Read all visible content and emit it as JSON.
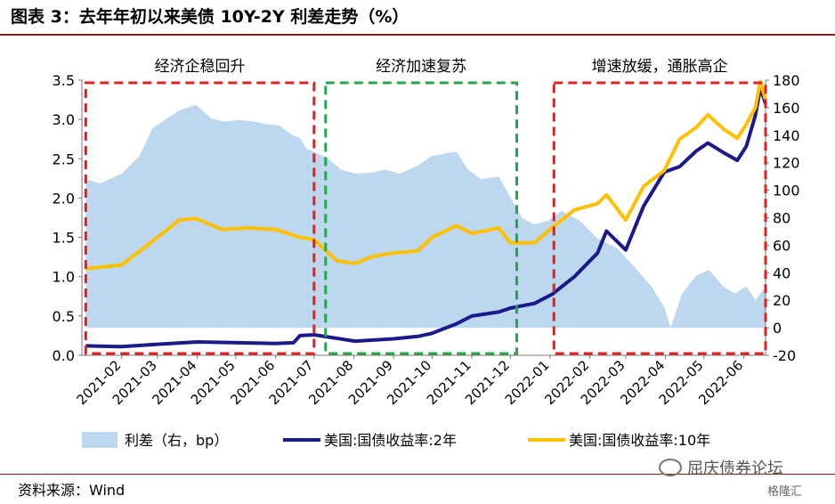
{
  "title": "图表 3：去年年初以来美债 10Y-2Y 利差走势（%）",
  "source": "资料来源：Wind",
  "watermark": "屈庆债券论坛",
  "watermark_brand": "格隆汇",
  "colors": {
    "spread_fill": "#bdd7ee",
    "y2": "#1a1a8a",
    "y10": "#ffc000",
    "box_red": "#e02020",
    "box_green": "#21a84a",
    "title_rule": "#8a1e1e"
  },
  "chart_data": {
    "type": "line",
    "x_tick_labels": [
      "2021-02",
      "2021-03",
      "2021-04",
      "2021-05",
      "2021-06",
      "2021-07",
      "2021-08",
      "2021-09",
      "2021-10",
      "2021-11",
      "2021-12",
      "2022-01",
      "2022-02",
      "2022-03",
      "2022-04",
      "2022-05",
      "2022-06"
    ],
    "x_range": [
      "2021-01-01",
      "2022-06-18"
    ],
    "y_left": {
      "ylim": [
        0,
        3.5
      ],
      "ticks": [
        "0.0",
        "0.5",
        "1.0",
        "1.5",
        "2.0",
        "2.5",
        "3.0",
        "3.5"
      ]
    },
    "y_right": {
      "ylim": [
        -20,
        180
      ],
      "ticks": [
        "-20",
        "0",
        "20",
        "40",
        "60",
        "80",
        "100",
        "120",
        "140",
        "160",
        "180"
      ]
    },
    "annotations": [
      "经济企稳回升",
      "经济加速复苏",
      "增速放缓，通胀高企"
    ],
    "periods": [
      {
        "label": "经济企稳回升",
        "start": "2021-01-04",
        "end": "2021-07-01",
        "color": "red"
      },
      {
        "label": "经济加速复苏",
        "start": "2021-07-10",
        "end": "2021-12-06",
        "color": "green"
      },
      {
        "label": "增速放缓，通胀高企",
        "start": "2022-01-04",
        "end": "2022-06-18",
        "color": "red"
      }
    ],
    "legend": [
      "利差（右，bp）",
      "美国:国债收益率:2年",
      "美国:国债收益率:10年"
    ],
    "series": [
      {
        "name": "利差（右，bp）",
        "axis": "right",
        "kind": "area",
        "points": [
          [
            "2021-01-04",
            108
          ],
          [
            "2021-01-15",
            105
          ],
          [
            "2021-02-01",
            112
          ],
          [
            "2021-02-15",
            125
          ],
          [
            "2021-02-25",
            145
          ],
          [
            "2021-03-08",
            152
          ],
          [
            "2021-03-18",
            158
          ],
          [
            "2021-03-31",
            162
          ],
          [
            "2021-04-12",
            152
          ],
          [
            "2021-04-22",
            150
          ],
          [
            "2021-05-04",
            151
          ],
          [
            "2021-05-14",
            150
          ],
          [
            "2021-05-25",
            148
          ],
          [
            "2021-06-04",
            147
          ],
          [
            "2021-06-14",
            140
          ],
          [
            "2021-06-20",
            138
          ],
          [
            "2021-06-25",
            130
          ],
          [
            "2021-07-01",
            128
          ],
          [
            "2021-07-12",
            123
          ],
          [
            "2021-07-22",
            115
          ],
          [
            "2021-08-02",
            112
          ],
          [
            "2021-08-16",
            113
          ],
          [
            "2021-08-25",
            115
          ],
          [
            "2021-09-06",
            112
          ],
          [
            "2021-09-20",
            118
          ],
          [
            "2021-10-01",
            125
          ],
          [
            "2021-10-20",
            128
          ],
          [
            "2021-10-29",
            115
          ],
          [
            "2021-11-08",
            108
          ],
          [
            "2021-11-22",
            110
          ],
          [
            "2021-12-01",
            95
          ],
          [
            "2021-12-10",
            80
          ],
          [
            "2021-12-20",
            75
          ],
          [
            "2021-12-31",
            78
          ],
          [
            "2022-01-10",
            85
          ],
          [
            "2022-01-24",
            78
          ],
          [
            "2022-02-07",
            65
          ],
          [
            "2022-02-22",
            58
          ],
          [
            "2022-03-07",
            45
          ],
          [
            "2022-03-21",
            30
          ],
          [
            "2022-03-31",
            15
          ],
          [
            "2022-04-05",
            0
          ],
          [
            "2022-04-14",
            25
          ],
          [
            "2022-04-25",
            38
          ],
          [
            "2022-05-05",
            42
          ],
          [
            "2022-05-16",
            30
          ],
          [
            "2022-05-25",
            25
          ],
          [
            "2022-06-03",
            30
          ],
          [
            "2022-06-10",
            20
          ],
          [
            "2022-06-18",
            30
          ]
        ]
      },
      {
        "name": "美国:国债收益率:2年",
        "axis": "left",
        "kind": "line",
        "points": [
          [
            "2021-01-04",
            0.12
          ],
          [
            "2021-02-01",
            0.11
          ],
          [
            "2021-03-01",
            0.14
          ],
          [
            "2021-04-01",
            0.17
          ],
          [
            "2021-05-03",
            0.16
          ],
          [
            "2021-06-01",
            0.15
          ],
          [
            "2021-06-15",
            0.16
          ],
          [
            "2021-06-20",
            0.25
          ],
          [
            "2021-07-01",
            0.26
          ],
          [
            "2021-08-02",
            0.18
          ],
          [
            "2021-09-01",
            0.21
          ],
          [
            "2021-09-20",
            0.24
          ],
          [
            "2021-10-01",
            0.28
          ],
          [
            "2021-10-20",
            0.4
          ],
          [
            "2021-11-01",
            0.5
          ],
          [
            "2021-11-22",
            0.55
          ],
          [
            "2021-12-01",
            0.6
          ],
          [
            "2021-12-20",
            0.66
          ],
          [
            "2022-01-03",
            0.78
          ],
          [
            "2022-01-20",
            1.0
          ],
          [
            "2022-02-07",
            1.3
          ],
          [
            "2022-02-14",
            1.58
          ],
          [
            "2022-03-01",
            1.34
          ],
          [
            "2022-03-15",
            1.9
          ],
          [
            "2022-03-31",
            2.33
          ],
          [
            "2022-04-12",
            2.4
          ],
          [
            "2022-04-25",
            2.6
          ],
          [
            "2022-05-04",
            2.7
          ],
          [
            "2022-05-16",
            2.58
          ],
          [
            "2022-05-27",
            2.48
          ],
          [
            "2022-06-03",
            2.66
          ],
          [
            "2022-06-10",
            3.05
          ],
          [
            "2022-06-14",
            3.4
          ],
          [
            "2022-06-18",
            3.2
          ]
        ]
      },
      {
        "name": "美国:国债收益率:10年",
        "axis": "left",
        "kind": "line",
        "points": [
          [
            "2021-01-04",
            1.1
          ],
          [
            "2021-02-01",
            1.15
          ],
          [
            "2021-02-25",
            1.45
          ],
          [
            "2021-03-18",
            1.72
          ],
          [
            "2021-03-31",
            1.74
          ],
          [
            "2021-04-20",
            1.6
          ],
          [
            "2021-05-10",
            1.62
          ],
          [
            "2021-06-01",
            1.6
          ],
          [
            "2021-06-20",
            1.5
          ],
          [
            "2021-07-01",
            1.47
          ],
          [
            "2021-07-19",
            1.2
          ],
          [
            "2021-08-02",
            1.17
          ],
          [
            "2021-08-16",
            1.26
          ],
          [
            "2021-09-01",
            1.3
          ],
          [
            "2021-09-20",
            1.33
          ],
          [
            "2021-10-01",
            1.5
          ],
          [
            "2021-10-20",
            1.65
          ],
          [
            "2021-11-01",
            1.55
          ],
          [
            "2021-11-22",
            1.62
          ],
          [
            "2021-12-01",
            1.43
          ],
          [
            "2021-12-20",
            1.43
          ],
          [
            "2022-01-03",
            1.63
          ],
          [
            "2022-01-20",
            1.85
          ],
          [
            "2022-02-07",
            1.93
          ],
          [
            "2022-02-14",
            2.04
          ],
          [
            "2022-03-01",
            1.72
          ],
          [
            "2022-03-15",
            2.15
          ],
          [
            "2022-03-31",
            2.35
          ],
          [
            "2022-04-12",
            2.75
          ],
          [
            "2022-04-25",
            2.9
          ],
          [
            "2022-05-04",
            3.06
          ],
          [
            "2022-05-16",
            2.88
          ],
          [
            "2022-05-27",
            2.76
          ],
          [
            "2022-06-03",
            2.94
          ],
          [
            "2022-06-10",
            3.15
          ],
          [
            "2022-06-14",
            3.48
          ],
          [
            "2022-06-18",
            3.25
          ]
        ]
      }
    ]
  }
}
